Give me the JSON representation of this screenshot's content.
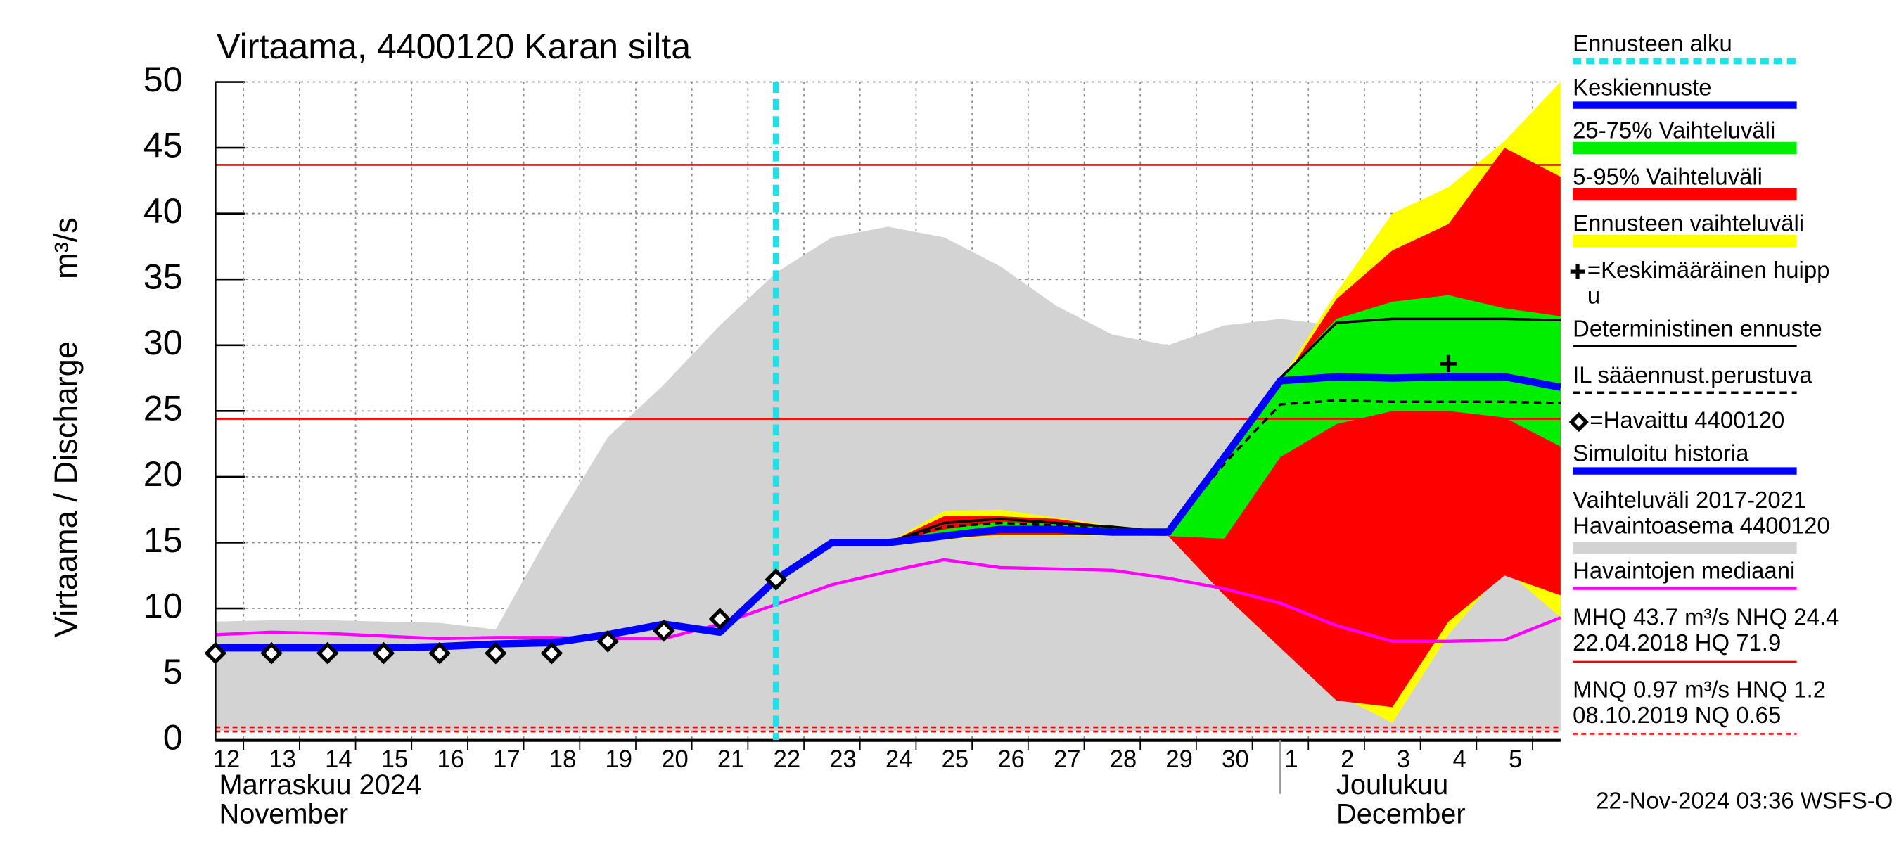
{
  "chart_data": {
    "type": "line",
    "title": "Virtaama, 4400120 Karan silta",
    "y_label": "Virtaama / Discharge",
    "y_unit": "m³/s",
    "xlim": [
      0,
      24
    ],
    "ylim": [
      0,
      50
    ],
    "yticks": [
      0,
      5,
      10,
      15,
      20,
      25,
      30,
      35,
      40,
      45,
      50
    ],
    "grid": true,
    "xticks": [
      {
        "value": 0.5,
        "label": "12"
      },
      {
        "value": 1.5,
        "label": "13"
      },
      {
        "value": 2.5,
        "label": "14"
      },
      {
        "value": 3.5,
        "label": "15"
      },
      {
        "value": 4.5,
        "label": "16"
      },
      {
        "value": 5.5,
        "label": "17"
      },
      {
        "value": 6.5,
        "label": "18"
      },
      {
        "value": 7.5,
        "label": "19"
      },
      {
        "value": 8.5,
        "label": "20"
      },
      {
        "value": 9.5,
        "label": "21"
      },
      {
        "value": 10.5,
        "label": "22"
      },
      {
        "value": 11.5,
        "label": "23"
      },
      {
        "value": 12.5,
        "label": "24"
      },
      {
        "value": 13.5,
        "label": "25"
      },
      {
        "value": 14.5,
        "label": "26"
      },
      {
        "value": 15.5,
        "label": "27"
      },
      {
        "value": 16.5,
        "label": "28"
      },
      {
        "value": 17.5,
        "label": "29"
      },
      {
        "value": 18.5,
        "label": "30"
      },
      {
        "value": 19.5,
        "label": "1"
      },
      {
        "value": 20.5,
        "label": "2"
      },
      {
        "value": 21.5,
        "label": "3"
      },
      {
        "value": 22.5,
        "label": "4"
      },
      {
        "value": 23.5,
        "label": "5"
      }
    ],
    "months": [
      {
        "value": 0,
        "lines": [
          "Marraskuu 2024",
          "November"
        ]
      },
      {
        "value": 19,
        "lines": [
          "Joulukuu",
          "December"
        ]
      }
    ],
    "timestamp": "22-Nov-2024 03:36 WSFS-O",
    "series": [
      {
        "name": "Ennusteen alku",
        "kind": "vline",
        "color": "#22e0e8",
        "x": [
          10
        ]
      },
      {
        "name": "Keskiennuste",
        "kind": "line",
        "color": "#0000ff",
        "width": 6,
        "x": [
          10,
          11,
          12,
          13,
          14,
          15,
          16,
          17,
          18,
          19,
          20,
          21,
          22,
          23,
          24
        ],
        "values": [
          12.2,
          15,
          15,
          15.5,
          16,
          16,
          15.8,
          15.8,
          21.5,
          27.3,
          27.6,
          27.5,
          27.6,
          27.6,
          26.8
        ]
      },
      {
        "name": "25-75% Vaihteluväli",
        "kind": "band",
        "color": "#00ee00",
        "x": [
          12,
          13,
          14,
          15,
          16,
          17,
          18,
          19,
          20,
          21,
          22,
          23,
          24
        ],
        "upper": [
          15,
          16,
          16.6,
          16.4,
          16.2,
          15.8,
          21.5,
          27.5,
          32,
          33.3,
          33.8,
          32.8,
          32.2
        ],
        "lower": [
          15,
          15.5,
          15.8,
          15.8,
          15.8,
          15.5,
          15.3,
          21.5,
          24,
          25,
          25,
          24.5,
          22.3
        ]
      },
      {
        "name": "5-95% Vaihteluväli",
        "kind": "band",
        "color": "#ff0000",
        "x": [
          12,
          13,
          14,
          15,
          16,
          17,
          18,
          19,
          20,
          21,
          22,
          23,
          24
        ],
        "upper": [
          15,
          17,
          17,
          16.8,
          16.2,
          15.8,
          21.5,
          27,
          33.5,
          37.2,
          39.2,
          45,
          42.8
        ],
        "lower": [
          15,
          15.3,
          15.6,
          15.6,
          15.6,
          15.5,
          11,
          7,
          3,
          2.5,
          9,
          12.5,
          11
        ]
      },
      {
        "name": "Ennusteen vaihteluväli",
        "kind": "band",
        "color": "#ffff00",
        "x": [
          12,
          13,
          14,
          15,
          16,
          17,
          18,
          19,
          20,
          21,
          22,
          23,
          24
        ],
        "upper": [
          15,
          17.4,
          17.5,
          16.9,
          16.3,
          15.8,
          21.5,
          27.3,
          34,
          40,
          42,
          45.5,
          50
        ],
        "lower": [
          15,
          15.2,
          15.5,
          15.5,
          15.5,
          15.5,
          11,
          7,
          3.5,
          1.3,
          8,
          13,
          9.3
        ]
      },
      {
        "name": [
          "=Keskimääräinen huipp",
          "u"
        ],
        "kind": "peak",
        "color": "#000000",
        "x": [
          22
        ],
        "values": [
          28.6
        ]
      },
      {
        "name": "Deterministinen ennuste",
        "kind": "line",
        "color": "#000000",
        "width": 2,
        "x": [
          12,
          13,
          14,
          15,
          16,
          17,
          18,
          19,
          20,
          21,
          22,
          23,
          24
        ],
        "values": [
          15,
          16.5,
          16.8,
          16.5,
          16.2,
          15.8,
          21.5,
          27.5,
          31.7,
          32,
          32,
          32,
          31.9
        ]
      },
      {
        "name": "IL sääennust.perustuva",
        "kind": "line",
        "color": "#000000",
        "width": 2,
        "dash": true,
        "x": [
          12,
          13,
          14,
          15,
          16,
          17,
          18,
          19,
          20,
          21,
          22,
          23,
          24
        ],
        "values": [
          15,
          16.2,
          16.5,
          16.3,
          16,
          15.8,
          21,
          25.5,
          25.8,
          25.7,
          25.7,
          25.7,
          25.6
        ]
      },
      {
        "name": "=Havaittu 4400120",
        "kind": "markers",
        "color": "#000000",
        "x": [
          0,
          1,
          2,
          3,
          4,
          5,
          6,
          7,
          8,
          9,
          10
        ],
        "values": [
          6.6,
          6.6,
          6.6,
          6.6,
          6.6,
          6.6,
          6.6,
          7.5,
          8.3,
          9.2,
          12.2
        ]
      },
      {
        "name": "Simuloitu historia",
        "kind": "line",
        "color": "#0000ff",
        "width": 6,
        "x": [
          0,
          1,
          2,
          3,
          4,
          5,
          6,
          7,
          8,
          9,
          10
        ],
        "values": [
          7.0,
          7.0,
          7.0,
          7.0,
          7.1,
          7.3,
          7.4,
          8.0,
          8.8,
          8.2,
          12.2
        ]
      },
      {
        "name": [
          "Vaihteluväli 2017-2021",
          " Havaintoasema 4400120"
        ],
        "kind": "band",
        "color": "#d3d3d3",
        "x": [
          0,
          1,
          2,
          3,
          4,
          5,
          6,
          7,
          8,
          9,
          10,
          11,
          12,
          13,
          14,
          15,
          16,
          17,
          18,
          19,
          20,
          21,
          22,
          23,
          24
        ],
        "upper": [
          9,
          9.1,
          9.1,
          9.0,
          8.9,
          8.4,
          16,
          23,
          27,
          31.5,
          35.5,
          38.2,
          39,
          38.2,
          36,
          33,
          30.8,
          30,
          31.5,
          32,
          31.5,
          29.5,
          27,
          25.3,
          24
        ],
        "lower": [
          0.7,
          0.7,
          0.7,
          0.7,
          0.7,
          0.7,
          0.7,
          0.7,
          0.7,
          0.7,
          0.7,
          0.7,
          0.7,
          0.7,
          0.7,
          0.7,
          0.7,
          0.7,
          0.7,
          0.7,
          0.7,
          0.7,
          0.7,
          0.7,
          0.7
        ]
      },
      {
        "name": "Havaintojen mediaani",
        "kind": "line",
        "color": "#ff00ff",
        "width": 2.5,
        "x": [
          0,
          1,
          2,
          3,
          4,
          5,
          6,
          7,
          8,
          9,
          10,
          11,
          12,
          13,
          14,
          15,
          16,
          17,
          18,
          19,
          20,
          21,
          22,
          23,
          24
        ],
        "values": [
          8.0,
          8.2,
          8.1,
          7.9,
          7.7,
          7.8,
          7.8,
          7.7,
          7.7,
          8.8,
          10.3,
          11.8,
          12.8,
          13.7,
          13.1,
          13.0,
          12.9,
          12.3,
          11.5,
          10.4,
          8.7,
          7.5,
          7.5,
          7.6,
          9.3
        ]
      }
    ],
    "reference_lines": [
      {
        "lines": [
          "MHQ 43.7 m³/s NHQ 24.4",
          "22.04.2018 HQ 71.9"
        ],
        "color": "#ff0000",
        "dash": false,
        "values": [
          43.7,
          24.4
        ]
      },
      {
        "lines": [
          "MNQ 0.97 m³/s HNQ  1.2",
          "08.10.2019 NQ 0.65"
        ],
        "color": "#ff0000",
        "dash": true,
        "values": [
          0.97,
          0.65
        ]
      }
    ]
  }
}
